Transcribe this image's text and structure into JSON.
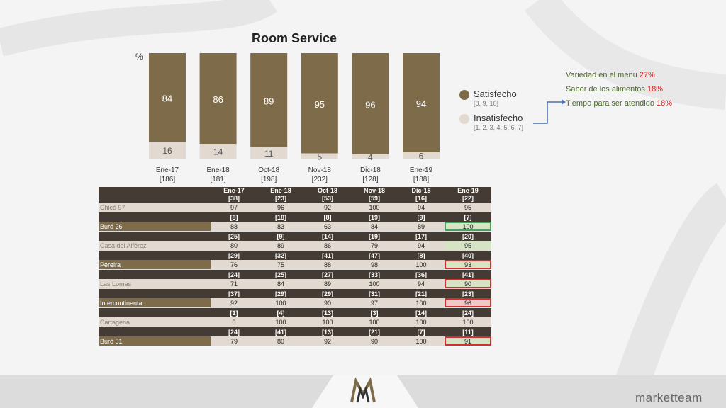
{
  "chart_data": {
    "type": "bar",
    "title": "Room Service",
    "ylabel": "%",
    "categories": [
      "Ene-17",
      "Ene-18",
      "Oct-18",
      "Nov-18",
      "Dic-18",
      "Ene-19"
    ],
    "counts": [
      "[186]",
      "[181]",
      "[198]",
      "[232]",
      "[128]",
      "[188]"
    ],
    "series": [
      {
        "name": "Satisfecho",
        "values": [
          84,
          86,
          89,
          95,
          96,
          94
        ],
        "color": "#7d6b4a"
      },
      {
        "name": "Insatisfecho",
        "values": [
          16,
          14,
          11,
          5,
          4,
          6
        ],
        "color": "#e2d9d0"
      }
    ],
    "ylim": [
      0,
      100
    ],
    "stacked": true
  },
  "legend": {
    "satisfied": {
      "label": "Satisfecho",
      "sub": "[8, 9, 10]"
    },
    "unsatisfied": {
      "label": "Insatisfecho",
      "sub": "[1, 2, 3, 4, 5, 6, 7]"
    }
  },
  "notes": [
    {
      "text": "Variedad en el menú",
      "value": "27%"
    },
    {
      "text": "Sabor de los alimentos",
      "value": "18%"
    },
    {
      "text": "Tiempo para ser atendido",
      "value": "18%"
    }
  ],
  "table": {
    "headers": [
      {
        "period": "Ene-17",
        "n": "[38]"
      },
      {
        "period": "Ene-18",
        "n": "[23]"
      },
      {
        "period": "Oct-18",
        "n": "[53]"
      },
      {
        "period": "Nov-18",
        "n": "[59]"
      },
      {
        "period": "Dic-18",
        "n": "[16]"
      },
      {
        "period": "Ene-19",
        "n": "[22]"
      }
    ],
    "rows": [
      {
        "name": "Chicó 97",
        "n": [],
        "v": [
          "97",
          "96",
          "92",
          "100",
          "94",
          "95"
        ],
        "style": "alt",
        "hl": ""
      },
      {
        "name": "Buró 26",
        "n": [
          "[8]",
          "[18]",
          "[8]",
          "[19]",
          "[9]",
          "[7]"
        ],
        "v": [
          "88",
          "83",
          "63",
          "84",
          "89",
          "100"
        ],
        "style": "gold",
        "hl": "green"
      },
      {
        "name": "Casa del Alférez",
        "n": [
          "[25]",
          "[9]",
          "[14]",
          "[19]",
          "[17]",
          "[20]"
        ],
        "v": [
          "80",
          "89",
          "86",
          "79",
          "94",
          "95"
        ],
        "style": "alt",
        "hl": "greenplain"
      },
      {
        "name": "Pereira",
        "n": [
          "[29]",
          "[32]",
          "[41]",
          "[47]",
          "[8]",
          "[40]"
        ],
        "v": [
          "76",
          "75",
          "88",
          "98",
          "100",
          "93"
        ],
        "style": "gold",
        "hl": "redgreen"
      },
      {
        "name": "Las Lomas",
        "n": [
          "[24]",
          "[25]",
          "[27]",
          "[33]",
          "[36]",
          "[41]"
        ],
        "v": [
          "71",
          "84",
          "89",
          "100",
          "94",
          "90"
        ],
        "style": "alt",
        "hl": "redgreen"
      },
      {
        "name": "Intercontinental",
        "n": [
          "[37]",
          "[29]",
          "[29]",
          "[31]",
          "[21]",
          "[23]"
        ],
        "v": [
          "92",
          "100",
          "90",
          "97",
          "100",
          "96"
        ],
        "style": "gold",
        "hl": "red"
      },
      {
        "name": "Cartagena",
        "n": [
          "[1]",
          "[4]",
          "[13]",
          "[3]",
          "[14]",
          "[24]"
        ],
        "v": [
          "0",
          "100",
          "100",
          "100",
          "100",
          "100"
        ],
        "style": "alt",
        "hl": ""
      },
      {
        "name": "Buró 51",
        "n": [
          "[24]",
          "[41]",
          "[13]",
          "[21]",
          "[7]",
          "[11]"
        ],
        "v": [
          "79",
          "80",
          "92",
          "90",
          "100",
          "91"
        ],
        "style": "gold",
        "hl": "redgreen"
      }
    ]
  },
  "brand": "marketteam"
}
